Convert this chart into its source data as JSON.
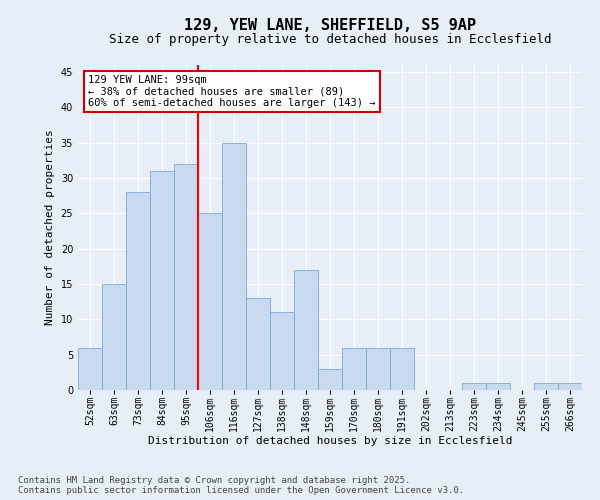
{
  "title": "129, YEW LANE, SHEFFIELD, S5 9AP",
  "subtitle": "Size of property relative to detached houses in Ecclesfield",
  "xlabel": "Distribution of detached houses by size in Ecclesfield",
  "ylabel": "Number of detached properties",
  "categories": [
    "52sqm",
    "63sqm",
    "73sqm",
    "84sqm",
    "95sqm",
    "106sqm",
    "116sqm",
    "127sqm",
    "138sqm",
    "148sqm",
    "159sqm",
    "170sqm",
    "180sqm",
    "191sqm",
    "202sqm",
    "213sqm",
    "223sqm",
    "234sqm",
    "245sqm",
    "255sqm",
    "266sqm"
  ],
  "values": [
    6,
    15,
    28,
    31,
    32,
    25,
    35,
    13,
    11,
    17,
    3,
    6,
    6,
    6,
    0,
    0,
    1,
    1,
    0,
    1,
    1
  ],
  "bar_color": "#c8d9f0",
  "bar_edge_color": "#7aaad4",
  "red_line_x": 4.5,
  "annotation_text": "129 YEW LANE: 99sqm\n← 38% of detached houses are smaller (89)\n60% of semi-detached houses are larger (143) →",
  "annotation_box_color": "#ffffff",
  "annotation_border_color": "#cc0000",
  "ylim": [
    0,
    46
  ],
  "yticks": [
    0,
    5,
    10,
    15,
    20,
    25,
    30,
    35,
    40,
    45
  ],
  "background_color": "#e8eef8",
  "grid_color": "#ffffff",
  "footer_line1": "Contains HM Land Registry data © Crown copyright and database right 2025.",
  "footer_line2": "Contains public sector information licensed under the Open Government Licence v3.0.",
  "title_fontsize": 11,
  "subtitle_fontsize": 9,
  "xlabel_fontsize": 8,
  "ylabel_fontsize": 8,
  "tick_fontsize": 7,
  "annotation_fontsize": 7.5,
  "footer_fontsize": 6.5
}
